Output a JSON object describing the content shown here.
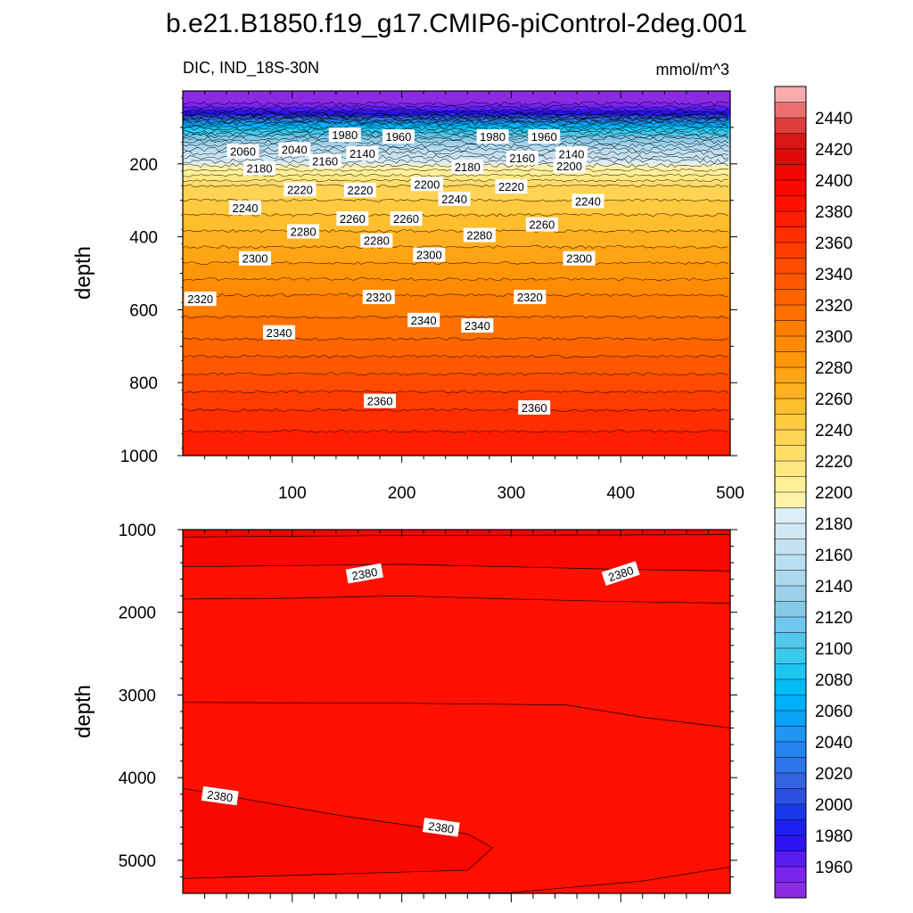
{
  "title": "b.e21.B1850.f19_g17.CMIP6-piControl-2deg.001",
  "chart_data": [
    {
      "type": "heatmap",
      "panel": "upper",
      "left_label": "DIC, IND_18S-30N",
      "right_label": "mmol/m^3",
      "ylabel": "depth",
      "xlabel": "",
      "xlim": [
        0,
        500
      ],
      "ylim": [
        1000,
        0
      ],
      "y_reversed": true,
      "xticks": [
        100,
        200,
        300,
        400,
        500
      ],
      "yticks": [
        200,
        400,
        600,
        800,
        1000
      ],
      "profile": [
        [
          0,
          1940
        ],
        [
          25,
          1940
        ],
        [
          60,
          1975
        ],
        [
          90,
          2060
        ],
        [
          130,
          2120
        ],
        [
          170,
          2160
        ],
        [
          210,
          2195
        ],
        [
          260,
          2230
        ],
        [
          340,
          2250
        ],
        [
          450,
          2275
        ],
        [
          560,
          2300
        ],
        [
          680,
          2320
        ],
        [
          800,
          2345
        ],
        [
          900,
          2365
        ],
        [
          1000,
          2380
        ]
      ],
      "contour_labels": [
        {
          "text": "2060",
          "x": 55,
          "y": 165
        },
        {
          "text": "2040",
          "x": 102,
          "y": 160
        },
        {
          "text": "1980",
          "x": 148,
          "y": 120
        },
        {
          "text": "1960",
          "x": 197,
          "y": 125
        },
        {
          "text": "1980",
          "x": 283,
          "y": 125
        },
        {
          "text": "1960",
          "x": 330,
          "y": 125
        },
        {
          "text": "2180",
          "x": 70,
          "y": 212
        },
        {
          "text": "2160",
          "x": 130,
          "y": 192
        },
        {
          "text": "2140",
          "x": 164,
          "y": 171
        },
        {
          "text": "2180",
          "x": 260,
          "y": 208
        },
        {
          "text": "2160",
          "x": 310,
          "y": 183
        },
        {
          "text": "2140",
          "x": 355,
          "y": 172
        },
        {
          "text": "2200",
          "x": 223,
          "y": 255
        },
        {
          "text": "2200",
          "x": 353,
          "y": 205
        },
        {
          "text": "2220",
          "x": 107,
          "y": 270
        },
        {
          "text": "2220",
          "x": 162,
          "y": 272
        },
        {
          "text": "2220",
          "x": 300,
          "y": 262
        },
        {
          "text": "2240",
          "x": 57,
          "y": 320
        },
        {
          "text": "2240",
          "x": 248,
          "y": 296
        },
        {
          "text": "2240",
          "x": 370,
          "y": 302
        },
        {
          "text": "2260",
          "x": 155,
          "y": 350
        },
        {
          "text": "2260",
          "x": 204,
          "y": 350
        },
        {
          "text": "2260",
          "x": 328,
          "y": 366
        },
        {
          "text": "2280",
          "x": 110,
          "y": 385
        },
        {
          "text": "2280",
          "x": 177,
          "y": 410
        },
        {
          "text": "2280",
          "x": 271,
          "y": 395
        },
        {
          "text": "2300",
          "x": 66,
          "y": 459
        },
        {
          "text": "2300",
          "x": 225,
          "y": 449
        },
        {
          "text": "2300",
          "x": 362,
          "y": 459
        },
        {
          "text": "2320",
          "x": 16,
          "y": 570
        },
        {
          "text": "2320",
          "x": 179,
          "y": 565
        },
        {
          "text": "2320",
          "x": 317,
          "y": 565
        },
        {
          "text": "2340",
          "x": 88,
          "y": 662
        },
        {
          "text": "2340",
          "x": 220,
          "y": 628
        },
        {
          "text": "2340",
          "x": 269,
          "y": 643
        },
        {
          "text": "2360",
          "x": 180,
          "y": 850
        },
        {
          "text": "2360",
          "x": 321,
          "y": 868
        }
      ]
    },
    {
      "type": "heatmap",
      "panel": "lower",
      "ylabel": "depth",
      "xlim": [
        0,
        500
      ],
      "ylim": [
        5400,
        1000
      ],
      "y_reversed": true,
      "yticks": [
        1000,
        2000,
        3000,
        4000,
        5000
      ],
      "contour_labels": [
        {
          "text": "2380",
          "x": 166,
          "y": 1530
        },
        {
          "text": "2380",
          "x": 400,
          "y": 1530
        },
        {
          "text": "2380",
          "x": 34,
          "y": 4220
        },
        {
          "text": "2380",
          "x": 236,
          "y": 4600
        }
      ]
    }
  ],
  "colorbar": {
    "levels": [
      1940,
      1950,
      1960,
      1970,
      1980,
      1990,
      2000,
      2010,
      2020,
      2030,
      2040,
      2050,
      2060,
      2070,
      2080,
      2090,
      2100,
      2110,
      2120,
      2130,
      2140,
      2150,
      2160,
      2170,
      2180,
      2190,
      2200,
      2210,
      2220,
      2230,
      2240,
      2250,
      2260,
      2270,
      2280,
      2290,
      2300,
      2310,
      2320,
      2330,
      2340,
      2350,
      2360,
      2370,
      2380,
      2390,
      2400,
      2410,
      2420,
      2430,
      2440,
      2450,
      2460
    ],
    "labels": [
      "2440",
      "2420",
      "2400",
      "2380",
      "2360",
      "2340",
      "2320",
      "2300",
      "2280",
      "2260",
      "2240",
      "2220",
      "2200",
      "2180",
      "2160",
      "2140",
      "2120",
      "2100",
      "2080",
      "2060",
      "2040",
      "2020",
      "2000",
      "1980",
      "1960"
    ],
    "colors": [
      "#8a2be2",
      "#7b24ee",
      "#5a1df0",
      "#2e12f2",
      "#1c20ee",
      "#1538e8",
      "#2c50e0",
      "#3462e0",
      "#2c74ec",
      "#2584f2",
      "#1f94f6",
      "#0aa2f8",
      "#00b0fa",
      "#00bdf6",
      "#1dc6f0",
      "#3acaee",
      "#52c8ec",
      "#70c8ec",
      "#86cae8",
      "#9cd0ea",
      "#acd8ee",
      "#b8def0",
      "#c4e2f2",
      "#d0e8f4",
      "#dceef6",
      "#fff2a8",
      "#fff096",
      "#ffe880",
      "#ffde68",
      "#ffd455",
      "#ffca40",
      "#ffbe2e",
      "#ffb020",
      "#ffa414",
      "#ff9608",
      "#ff8a04",
      "#ff7e00",
      "#ff7000",
      "#ff6400",
      "#ff5800",
      "#ff4a00",
      "#ff3c00",
      "#ff2e00",
      "#ff1e00",
      "#ff1000",
      "#fa0800",
      "#f00800",
      "#e00a0a",
      "#d81616",
      "#e03c3c",
      "#ec7070",
      "#f8acac"
    ]
  }
}
